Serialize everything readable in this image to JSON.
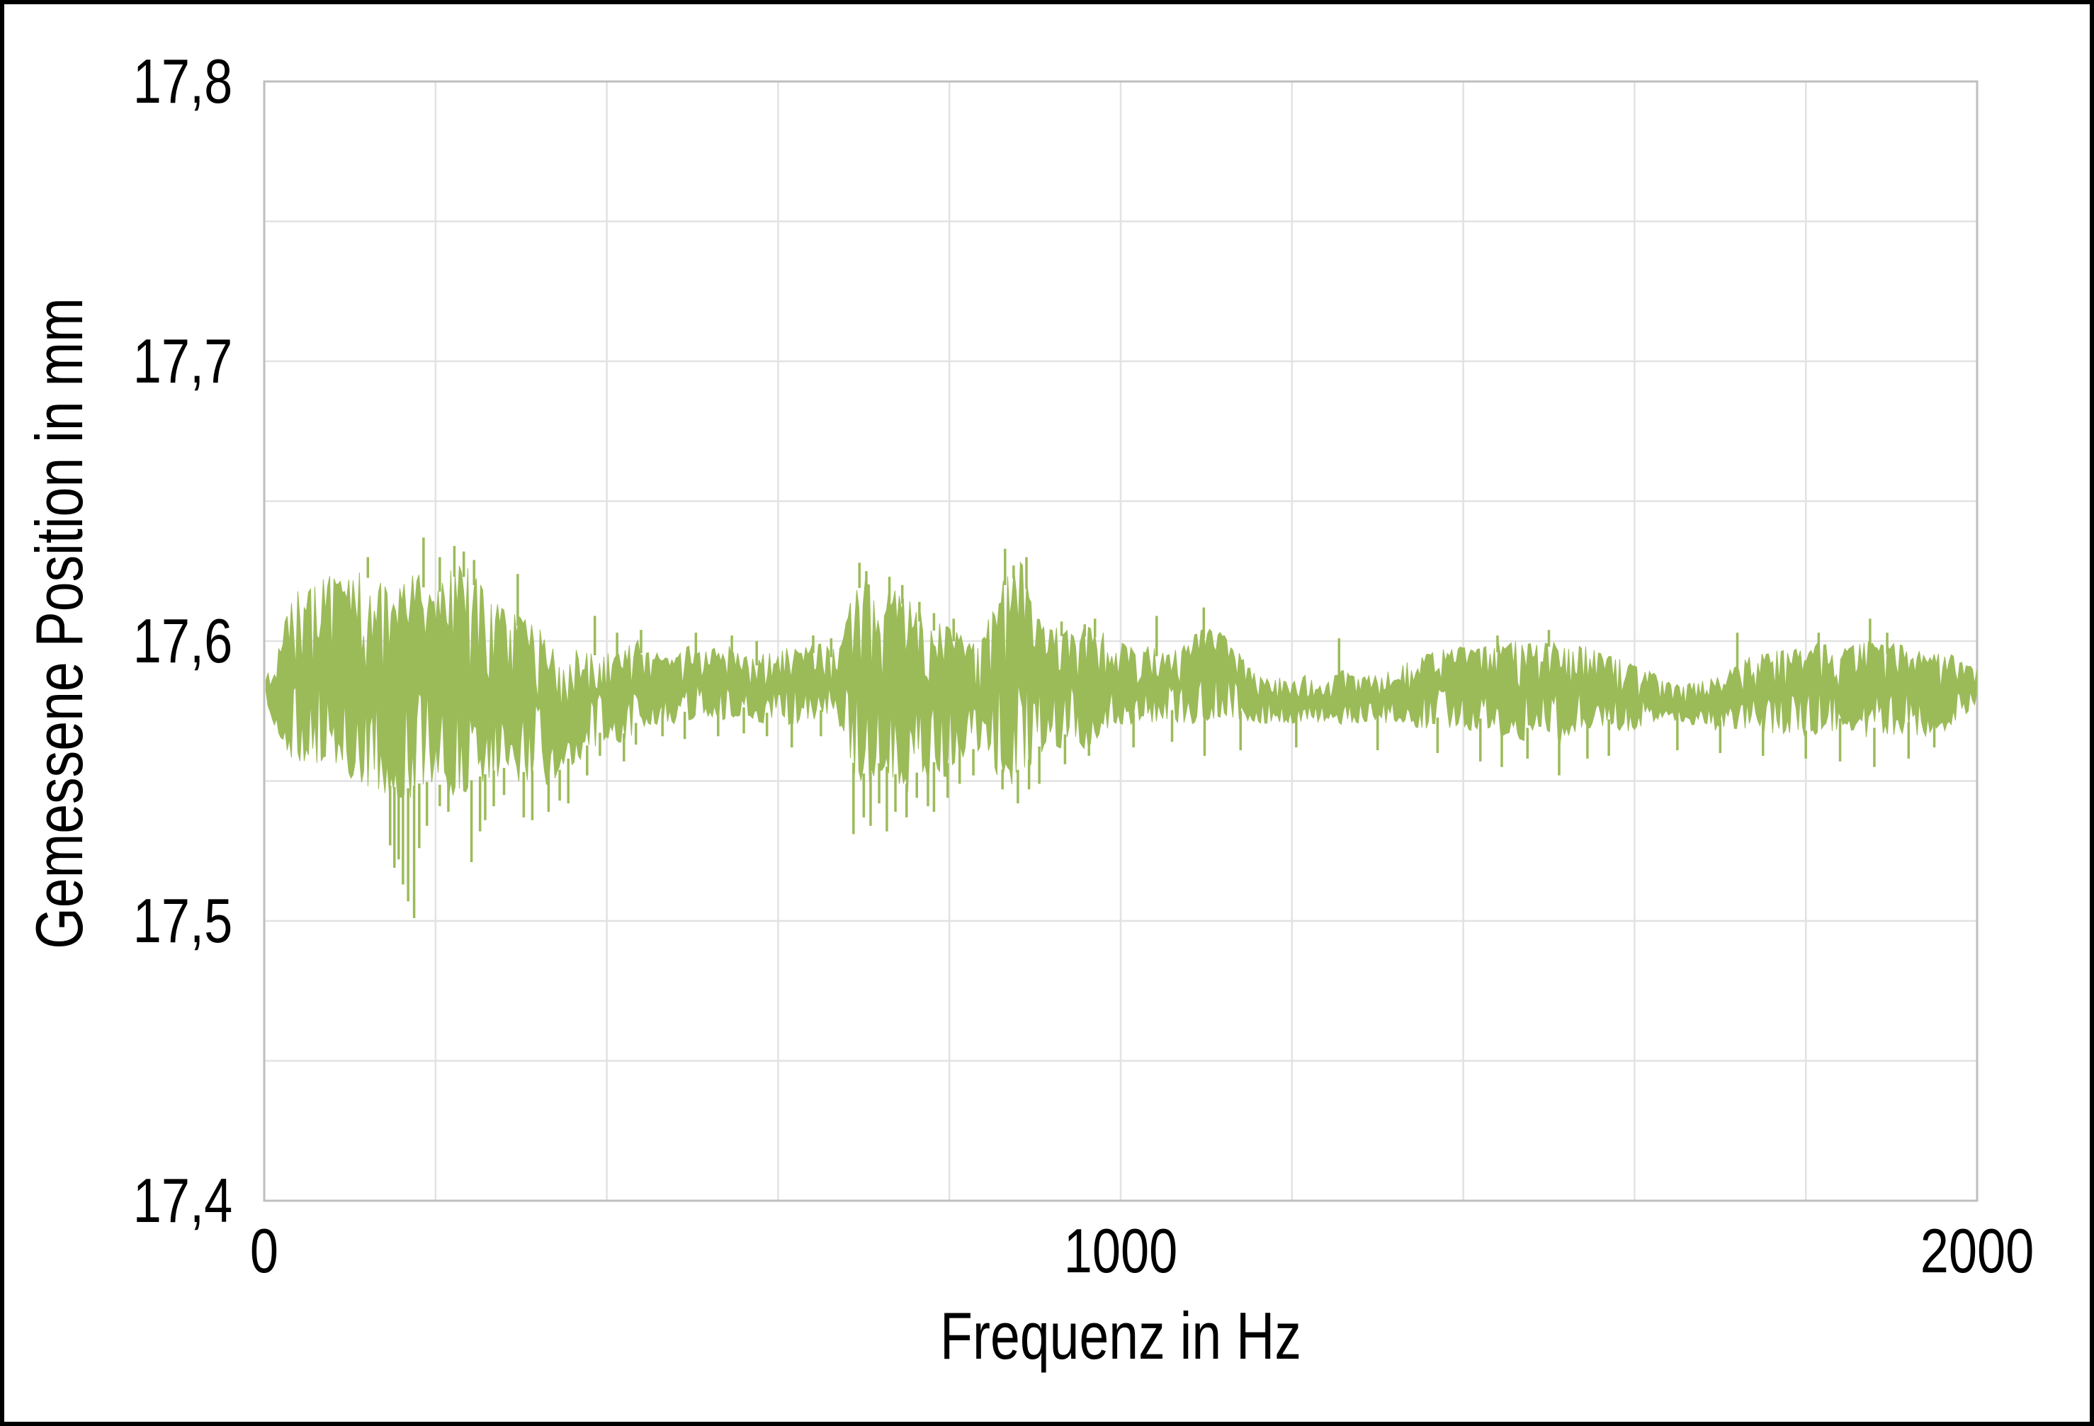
{
  "colors": {
    "background": "#ffffff",
    "figure_border": "#000000",
    "series_green": "#9BBB59",
    "gridline": "#E2E2E2",
    "plot_border": "#BFBFBF",
    "text": "#000000"
  },
  "chart_data": {
    "type": "area",
    "title": "",
    "xlabel": "Frequenz in Hz",
    "ylabel": "Gemessene Position in mm",
    "xlim": [
      0,
      2000
    ],
    "ylim": [
      17.4,
      17.8
    ],
    "x_grid_step": 200,
    "y_grid_step": 0.05,
    "grid": true,
    "legend": false,
    "x_ticks": [
      {
        "value": 0,
        "label": "0"
      },
      {
        "value": 1000,
        "label": "1000"
      },
      {
        "value": 2000,
        "label": "2000"
      }
    ],
    "y_ticks": [
      {
        "value": 17.8,
        "label": "17,8"
      },
      {
        "value": 17.7,
        "label": "17,7"
      },
      {
        "value": 17.6,
        "label": "17,6"
      },
      {
        "value": 17.5,
        "label": "17,5"
      },
      {
        "value": 17.4,
        "label": "17,4"
      }
    ],
    "series": [
      {
        "name": "Gemessene Position",
        "description": "noisy measured-position trace vs frequency; envelope triples [Hz, min mm, max mm]",
        "envelope": [
          [
            2,
            17.578,
            17.588
          ],
          [
            10,
            17.571,
            17.592
          ],
          [
            20,
            17.564,
            17.601
          ],
          [
            30,
            17.558,
            17.615
          ],
          [
            45,
            17.556,
            17.62
          ],
          [
            60,
            17.556,
            17.622
          ],
          [
            75,
            17.555,
            17.624
          ],
          [
            90,
            17.552,
            17.622
          ],
          [
            105,
            17.549,
            17.625
          ],
          [
            120,
            17.548,
            17.627
          ],
          [
            135,
            17.546,
            17.621
          ],
          [
            150,
            17.544,
            17.619
          ],
          [
            165,
            17.543,
            17.621
          ],
          [
            180,
            17.545,
            17.626
          ],
          [
            195,
            17.546,
            17.619
          ],
          [
            210,
            17.544,
            17.623
          ],
          [
            225,
            17.545,
            17.628
          ],
          [
            240,
            17.546,
            17.626
          ],
          [
            255,
            17.548,
            17.62
          ],
          [
            270,
            17.55,
            17.615
          ],
          [
            285,
            17.551,
            17.611
          ],
          [
            300,
            17.549,
            17.609
          ],
          [
            315,
            17.55,
            17.606
          ],
          [
            330,
            17.548,
            17.603
          ],
          [
            345,
            17.55,
            17.6
          ],
          [
            360,
            17.556,
            17.598
          ],
          [
            375,
            17.558,
            17.596
          ],
          [
            390,
            17.563,
            17.6
          ],
          [
            405,
            17.565,
            17.597
          ],
          [
            420,
            17.563,
            17.598
          ],
          [
            435,
            17.567,
            17.601
          ],
          [
            450,
            17.569,
            17.597
          ],
          [
            465,
            17.571,
            17.595
          ],
          [
            480,
            17.57,
            17.594
          ],
          [
            495,
            17.571,
            17.599
          ],
          [
            510,
            17.573,
            17.596
          ],
          [
            525,
            17.572,
            17.598
          ],
          [
            540,
            17.571,
            17.599
          ],
          [
            555,
            17.573,
            17.597
          ],
          [
            570,
            17.571,
            17.595
          ],
          [
            585,
            17.57,
            17.596
          ],
          [
            600,
            17.573,
            17.597
          ],
          [
            615,
            17.569,
            17.598
          ],
          [
            630,
            17.571,
            17.599
          ],
          [
            645,
            17.572,
            17.6
          ],
          [
            660,
            17.57,
            17.598
          ],
          [
            675,
            17.569,
            17.6
          ],
          [
            690,
            17.55,
            17.624
          ],
          [
            705,
            17.548,
            17.621
          ],
          [
            720,
            17.553,
            17.614
          ],
          [
            735,
            17.549,
            17.62
          ],
          [
            750,
            17.545,
            17.616
          ],
          [
            765,
            17.55,
            17.611
          ],
          [
            780,
            17.553,
            17.608
          ],
          [
            795,
            17.551,
            17.606
          ],
          [
            810,
            17.558,
            17.603
          ],
          [
            825,
            17.557,
            17.6
          ],
          [
            840,
            17.559,
            17.601
          ],
          [
            855,
            17.552,
            17.622
          ],
          [
            870,
            17.548,
            17.625
          ],
          [
            885,
            17.551,
            17.629
          ],
          [
            900,
            17.556,
            17.61
          ],
          [
            915,
            17.563,
            17.604
          ],
          [
            930,
            17.561,
            17.606
          ],
          [
            945,
            17.566,
            17.603
          ],
          [
            960,
            17.56,
            17.606
          ],
          [
            975,
            17.566,
            17.605
          ],
          [
            990,
            17.57,
            17.601
          ],
          [
            1005,
            17.569,
            17.599
          ],
          [
            1020,
            17.571,
            17.598
          ],
          [
            1035,
            17.57,
            17.6
          ],
          [
            1050,
            17.572,
            17.597
          ],
          [
            1065,
            17.571,
            17.597
          ],
          [
            1080,
            17.57,
            17.601
          ],
          [
            1095,
            17.571,
            17.605
          ],
          [
            1110,
            17.572,
            17.605
          ],
          [
            1125,
            17.573,
            17.602
          ],
          [
            1140,
            17.571,
            17.596
          ],
          [
            1155,
            17.571,
            17.589
          ],
          [
            1170,
            17.57,
            17.587
          ],
          [
            1185,
            17.571,
            17.587
          ],
          [
            1200,
            17.57,
            17.586
          ],
          [
            1215,
            17.571,
            17.588
          ],
          [
            1230,
            17.57,
            17.586
          ],
          [
            1245,
            17.571,
            17.587
          ],
          [
            1260,
            17.57,
            17.59
          ],
          [
            1275,
            17.57,
            17.587
          ],
          [
            1290,
            17.571,
            17.588
          ],
          [
            1305,
            17.57,
            17.589
          ],
          [
            1320,
            17.571,
            17.591
          ],
          [
            1335,
            17.57,
            17.593
          ],
          [
            1350,
            17.568,
            17.595
          ],
          [
            1365,
            17.569,
            17.596
          ],
          [
            1380,
            17.568,
            17.598
          ],
          [
            1395,
            17.57,
            17.599
          ],
          [
            1410,
            17.567,
            17.597
          ],
          [
            1425,
            17.569,
            17.599
          ],
          [
            1440,
            17.565,
            17.6
          ],
          [
            1455,
            17.567,
            17.601
          ],
          [
            1470,
            17.563,
            17.599
          ],
          [
            1485,
            17.569,
            17.6
          ],
          [
            1500,
            17.566,
            17.602
          ],
          [
            1515,
            17.561,
            17.598
          ],
          [
            1530,
            17.567,
            17.599
          ],
          [
            1545,
            17.569,
            17.598
          ],
          [
            1560,
            17.566,
            17.596
          ],
          [
            1575,
            17.569,
            17.595
          ],
          [
            1590,
            17.567,
            17.593
          ],
          [
            1605,
            17.569,
            17.591
          ],
          [
            1620,
            17.571,
            17.589
          ],
          [
            1635,
            17.569,
            17.587
          ],
          [
            1650,
            17.571,
            17.585
          ],
          [
            1665,
            17.569,
            17.585
          ],
          [
            1680,
            17.569,
            17.586
          ],
          [
            1695,
            17.567,
            17.587
          ],
          [
            1710,
            17.569,
            17.591
          ],
          [
            1725,
            17.567,
            17.594
          ],
          [
            1740,
            17.569,
            17.595
          ],
          [
            1755,
            17.567,
            17.596
          ],
          [
            1770,
            17.565,
            17.597
          ],
          [
            1785,
            17.567,
            17.598
          ],
          [
            1800,
            17.564,
            17.599
          ],
          [
            1815,
            17.567,
            17.6
          ],
          [
            1830,
            17.567,
            17.598
          ],
          [
            1845,
            17.569,
            17.598
          ],
          [
            1860,
            17.567,
            17.599
          ],
          [
            1875,
            17.564,
            17.601
          ],
          [
            1890,
            17.567,
            17.599
          ],
          [
            1905,
            17.565,
            17.6
          ],
          [
            1920,
            17.567,
            17.598
          ],
          [
            1935,
            17.564,
            17.597
          ],
          [
            1950,
            17.568,
            17.596
          ],
          [
            1965,
            17.567,
            17.596
          ],
          [
            1980,
            17.572,
            17.594
          ],
          [
            2000,
            17.577,
            17.59
          ]
        ],
        "spikes_down": [
          [
            147,
            17.527
          ],
          [
            152,
            17.519
          ],
          [
            157,
            17.522
          ],
          [
            162,
            17.513
          ],
          [
            168,
            17.507
          ],
          [
            175,
            17.501
          ],
          [
            181,
            17.526
          ],
          [
            190,
            17.534
          ],
          [
            205,
            17.541
          ],
          [
            215,
            17.539
          ],
          [
            242,
            17.521
          ],
          [
            252,
            17.532
          ],
          [
            258,
            17.536
          ],
          [
            268,
            17.541
          ],
          [
            280,
            17.545
          ],
          [
            303,
            17.537
          ],
          [
            313,
            17.536
          ],
          [
            332,
            17.539
          ],
          [
            345,
            17.543
          ],
          [
            355,
            17.542
          ],
          [
            377,
            17.552
          ],
          [
            392,
            17.559
          ],
          [
            420,
            17.557
          ],
          [
            434,
            17.563
          ],
          [
            465,
            17.566
          ],
          [
            491,
            17.565
          ],
          [
            530,
            17.566
          ],
          [
            560,
            17.567
          ],
          [
            587,
            17.566
          ],
          [
            616,
            17.562
          ],
          [
            650,
            17.566
          ],
          [
            688,
            17.531
          ],
          [
            700,
            17.537
          ],
          [
            708,
            17.534
          ],
          [
            718,
            17.542
          ],
          [
            727,
            17.532
          ],
          [
            737,
            17.539
          ],
          [
            750,
            17.537
          ],
          [
            762,
            17.544
          ],
          [
            775,
            17.541
          ],
          [
            782,
            17.539
          ],
          [
            798,
            17.544
          ],
          [
            812,
            17.549
          ],
          [
            828,
            17.552
          ],
          [
            862,
            17.547
          ],
          [
            880,
            17.542
          ],
          [
            893,
            17.547
          ],
          [
            905,
            17.549
          ],
          [
            935,
            17.556
          ],
          [
            963,
            17.559
          ],
          [
            1015,
            17.562
          ],
          [
            1060,
            17.564
          ],
          [
            1098,
            17.559
          ],
          [
            1140,
            17.561
          ],
          [
            1205,
            17.562
          ],
          [
            1300,
            17.561
          ],
          [
            1370,
            17.56
          ],
          [
            1420,
            17.557
          ],
          [
            1445,
            17.555
          ],
          [
            1475,
            17.558
          ],
          [
            1512,
            17.552
          ],
          [
            1545,
            17.558
          ],
          [
            1570,
            17.559
          ],
          [
            1650,
            17.561
          ],
          [
            1700,
            17.56
          ],
          [
            1750,
            17.559
          ],
          [
            1800,
            17.558
          ],
          [
            1840,
            17.557
          ],
          [
            1880,
            17.555
          ],
          [
            1920,
            17.558
          ],
          [
            1950,
            17.562
          ]
        ],
        "spikes_up": [
          [
            121,
            17.63
          ],
          [
            186,
            17.637
          ],
          [
            205,
            17.63
          ],
          [
            222,
            17.634
          ],
          [
            233,
            17.632
          ],
          [
            245,
            17.629
          ],
          [
            296,
            17.624
          ],
          [
            386,
            17.609
          ],
          [
            412,
            17.603
          ],
          [
            440,
            17.604
          ],
          [
            504,
            17.603
          ],
          [
            546,
            17.602
          ],
          [
            575,
            17.6
          ],
          [
            641,
            17.602
          ],
          [
            662,
            17.601
          ],
          [
            695,
            17.628
          ],
          [
            703,
            17.625
          ],
          [
            730,
            17.623
          ],
          [
            745,
            17.62
          ],
          [
            765,
            17.614
          ],
          [
            782,
            17.61
          ],
          [
            805,
            17.608
          ],
          [
            865,
            17.633
          ],
          [
            875,
            17.627
          ],
          [
            890,
            17.63
          ],
          [
            931,
            17.607
          ],
          [
            958,
            17.606
          ],
          [
            970,
            17.608
          ],
          [
            1042,
            17.609
          ],
          [
            1097,
            17.612
          ],
          [
            1255,
            17.601
          ],
          [
            1440,
            17.602
          ],
          [
            1500,
            17.604
          ],
          [
            1720,
            17.603
          ],
          [
            1815,
            17.603
          ],
          [
            1875,
            17.608
          ],
          [
            1895,
            17.603
          ]
        ]
      }
    ]
  }
}
